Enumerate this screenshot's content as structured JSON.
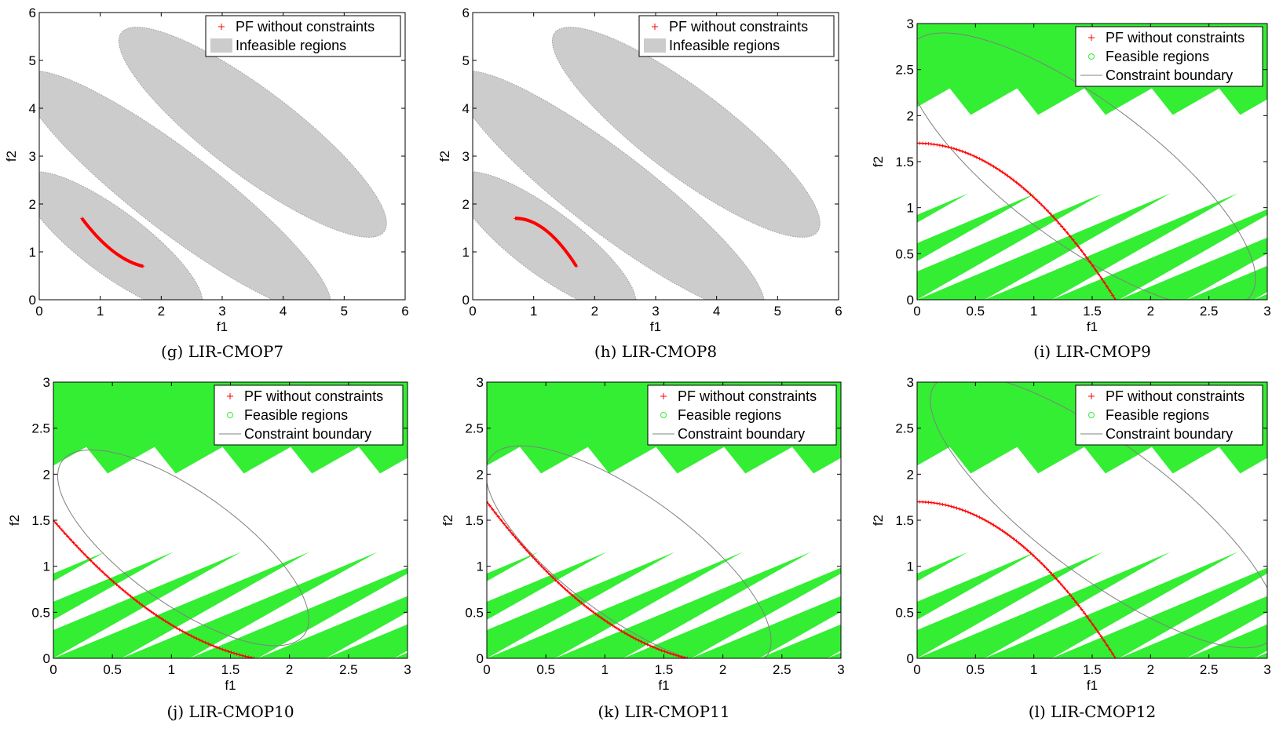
{
  "chart_data": [
    {
      "id": "g",
      "type": "scatter",
      "caption": "(g) LIR-CMOP7",
      "xlabel": "f1",
      "ylabel": "f2",
      "xlim": [
        0,
        6
      ],
      "ylim": [
        0,
        6
      ],
      "xticks": [
        "0",
        "1",
        "2",
        "3",
        "4",
        "5",
        "6"
      ],
      "yticks": [
        "0",
        "1",
        "2",
        "3",
        "4",
        "5",
        "6"
      ],
      "grid": false,
      "legend_position": "top-right",
      "legend": [
        "PF without constraints",
        "Infeasible regions"
      ],
      "regions": [
        {
          "kind": "infeasible",
          "shape": "ellipse",
          "center": [
            1.2,
            1.2
          ],
          "a": 2.0,
          "b": 0.6,
          "angle_deg": -45
        },
        {
          "kind": "infeasible",
          "shape": "ellipse",
          "center": [
            2.25,
            2.25
          ],
          "a": 3.5,
          "b": 0.75,
          "angle_deg": -45
        },
        {
          "kind": "infeasible",
          "shape": "ellipse",
          "center": [
            3.5,
            3.5
          ],
          "a": 3.0,
          "b": 0.8,
          "angle_deg": -45
        }
      ],
      "pf": {
        "f1_range": [
          0.7,
          1.7
        ],
        "f2_at_start": 1.7,
        "f2_at_end": 0.7,
        "curve": "convex"
      },
      "colors": {
        "pf": "#ff0000",
        "infeasible": "#cccccc"
      }
    },
    {
      "id": "h",
      "type": "scatter",
      "caption": "(h) LIR-CMOP8",
      "xlabel": "f1",
      "ylabel": "f2",
      "xlim": [
        0,
        6
      ],
      "ylim": [
        0,
        6
      ],
      "xticks": [
        "0",
        "1",
        "2",
        "3",
        "4",
        "5",
        "6"
      ],
      "yticks": [
        "0",
        "1",
        "2",
        "3",
        "4",
        "5",
        "6"
      ],
      "grid": false,
      "legend_position": "top-right",
      "legend": [
        "PF without constraints",
        "Infeasible regions"
      ],
      "regions": [
        {
          "kind": "infeasible",
          "shape": "ellipse",
          "center": [
            1.2,
            1.2
          ],
          "a": 2.0,
          "b": 0.6,
          "angle_deg": -45
        },
        {
          "kind": "infeasible",
          "shape": "ellipse",
          "center": [
            2.25,
            2.25
          ],
          "a": 3.5,
          "b": 0.75,
          "angle_deg": -45
        },
        {
          "kind": "infeasible",
          "shape": "ellipse",
          "center": [
            3.5,
            3.5
          ],
          "a": 3.0,
          "b": 0.8,
          "angle_deg": -45
        }
      ],
      "pf": {
        "f1_range": [
          0.7,
          1.7
        ],
        "f2_at_start": 1.7,
        "f2_at_end": 0.7,
        "curve": "concave"
      },
      "colors": {
        "pf": "#ff0000",
        "infeasible": "#cccccc"
      }
    },
    {
      "id": "i",
      "type": "scatter",
      "caption": "(i) LIR-CMOP9",
      "xlabel": "f1",
      "ylabel": "f2",
      "xlim": [
        0,
        3
      ],
      "ylim": [
        0,
        3
      ],
      "xticks": [
        "0",
        "0.5",
        "1",
        "1.5",
        "2",
        "2.5",
        "3"
      ],
      "yticks": [
        "0",
        "0.5",
        "1",
        "1.5",
        "2",
        "2.5",
        "3"
      ],
      "grid": false,
      "legend_position": "top-right",
      "legend": [
        "PF without constraints",
        "Feasible regions",
        "Constraint boundary"
      ],
      "boundary": {
        "shape": "ellipse",
        "center": [
          1.4,
          1.4
        ],
        "a": 2.0,
        "b": 0.7,
        "angle_deg": -45
      },
      "pf": {
        "f1_range": [
          0,
          1.7
        ],
        "f2_at_start": 1.7,
        "f2_at_end": 0,
        "curve": "concave"
      },
      "colors": {
        "pf": "#ff0000",
        "feasible": "#33ee33",
        "boundary": "#808080"
      }
    },
    {
      "id": "j",
      "type": "scatter",
      "caption": "(j) LIR-CMOP10",
      "xlabel": "f1",
      "ylabel": "f2",
      "xlim": [
        0,
        3
      ],
      "ylim": [
        0,
        3
      ],
      "xticks": [
        "0",
        "0.5",
        "1",
        "1.5",
        "2",
        "2.5",
        "3"
      ],
      "yticks": [
        "0",
        "0.5",
        "1",
        "1.5",
        "2",
        "2.5",
        "3"
      ],
      "grid": false,
      "legend_position": "top-right",
      "legend": [
        "PF without constraints",
        "Feasible regions",
        "Constraint boundary"
      ],
      "boundary": {
        "shape": "ellipse",
        "center": [
          1.1,
          1.2
        ],
        "a": 1.4,
        "b": 0.55,
        "angle_deg": -45
      },
      "pf": {
        "f1_range": [
          0,
          1.7
        ],
        "f2_at_start": 1.5,
        "f2_at_end": 0,
        "curve": "convex"
      },
      "colors": {
        "pf": "#ff0000",
        "feasible": "#33ee33",
        "boundary": "#808080"
      }
    },
    {
      "id": "k",
      "type": "scatter",
      "caption": "(k) LIR-CMOP11",
      "xlabel": "f1",
      "ylabel": "f2",
      "xlim": [
        0,
        3
      ],
      "ylim": [
        0,
        3
      ],
      "xticks": [
        "0",
        "0.5",
        "1",
        "1.5",
        "2",
        "2.5",
        "3"
      ],
      "yticks": [
        "0",
        "0.5",
        "1",
        "1.5",
        "2",
        "2.5",
        "3"
      ],
      "grid": false,
      "legend_position": "top-right",
      "legend": [
        "PF without constraints",
        "Feasible regions",
        "Constraint boundary"
      ],
      "boundary": {
        "shape": "ellipse",
        "center": [
          1.2,
          1.1
        ],
        "a": 1.6,
        "b": 0.6,
        "angle_deg": -45
      },
      "pf": {
        "f1_range": [
          0,
          1.7
        ],
        "f2_at_start": 1.7,
        "f2_at_end": 0,
        "curve": "convex"
      },
      "colors": {
        "pf": "#ff0000",
        "feasible": "#33ee33",
        "boundary": "#808080"
      }
    },
    {
      "id": "l",
      "type": "scatter",
      "caption": "(l) LIR-CMOP12",
      "xlabel": "f1",
      "ylabel": "f2",
      "xlim": [
        0,
        3
      ],
      "ylim": [
        0,
        3
      ],
      "xticks": [
        "0",
        "0.5",
        "1",
        "1.5",
        "2",
        "2.5",
        "3"
      ],
      "yticks": [
        "0",
        "0.5",
        "1",
        "1.5",
        "2",
        "2.5",
        "3"
      ],
      "grid": false,
      "legend_position": "top-right",
      "legend": [
        "PF without constraints",
        "Feasible regions",
        "Constraint boundary"
      ],
      "boundary": {
        "shape": "ellipse",
        "center": [
          1.6,
          1.6
        ],
        "a": 2.0,
        "b": 0.65,
        "angle_deg": -45
      },
      "pf": {
        "f1_range": [
          0,
          1.7
        ],
        "f2_at_start": 1.7,
        "f2_at_end": 0,
        "curve": "concave"
      },
      "colors": {
        "pf": "#ff0000",
        "feasible": "#33ee33",
        "boundary": "#808080"
      }
    }
  ]
}
